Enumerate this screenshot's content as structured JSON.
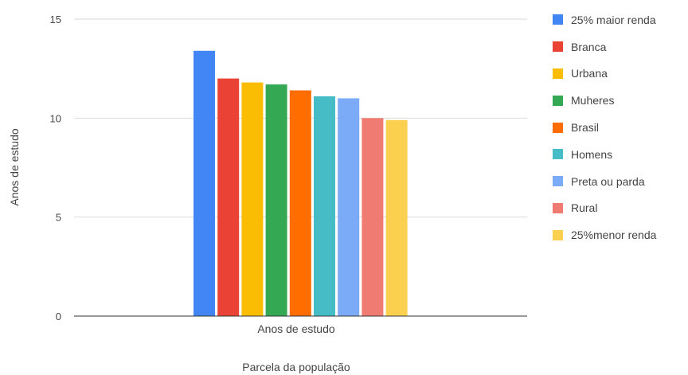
{
  "chart_data": {
    "type": "bar",
    "categories": [
      "Anos de estudo"
    ],
    "xlabel": "Parcela da população",
    "ylabel": "Anos de estudo",
    "ylim": [
      0,
      15
    ],
    "yticks": [
      0,
      5,
      10,
      15
    ],
    "grid": true,
    "legend_position": "right",
    "series": [
      {
        "name": "25% maior renda",
        "values": [
          13.4
        ],
        "color": "#4285f4"
      },
      {
        "name": "Branca",
        "values": [
          12.0
        ],
        "color": "#ea4335"
      },
      {
        "name": "Urbana",
        "values": [
          11.8
        ],
        "color": "#fbbc04"
      },
      {
        "name": "Muheres",
        "values": [
          11.7
        ],
        "color": "#34a853"
      },
      {
        "name": "Brasil",
        "values": [
          11.4
        ],
        "color": "#ff6d01"
      },
      {
        "name": "Homens",
        "values": [
          11.1
        ],
        "color": "#46bdc6"
      },
      {
        "name": "Preta ou parda",
        "values": [
          11.0
        ],
        "color": "#7baaf7"
      },
      {
        "name": "Rural",
        "values": [
          10.0
        ],
        "color": "#f07b72"
      },
      {
        "name": "25%menor renda",
        "values": [
          9.9
        ],
        "color": "#fcd04f"
      }
    ]
  }
}
